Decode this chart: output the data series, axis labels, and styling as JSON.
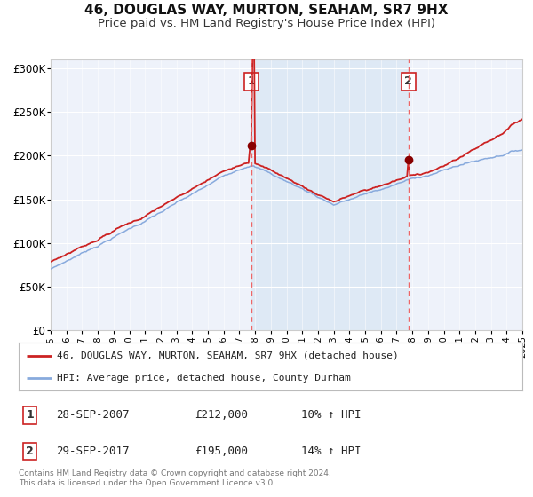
{
  "title": "46, DOUGLAS WAY, MURTON, SEAHAM, SR7 9HX",
  "subtitle": "Price paid vs. HM Land Registry's House Price Index (HPI)",
  "title_fontsize": 11,
  "subtitle_fontsize": 9.5,
  "background_color": "#ffffff",
  "legend_label_red": "46, DOUGLAS WAY, MURTON, SEAHAM, SR7 9HX (detached house)",
  "legend_label_blue": "HPI: Average price, detached house, County Durham",
  "transaction1_date": "28-SEP-2007",
  "transaction1_price": "£212,000",
  "transaction1_hpi": "10% ↑ HPI",
  "transaction1_year": 2007.75,
  "transaction1_value": 212000,
  "transaction2_date": "29-SEP-2017",
  "transaction2_price": "£195,000",
  "transaction2_hpi": "14% ↑ HPI",
  "transaction2_year": 2017.75,
  "transaction2_value": 195000,
  "yticks": [
    0,
    50000,
    100000,
    150000,
    200000,
    250000,
    300000
  ],
  "ytick_labels": [
    "£0",
    "£50K",
    "£100K",
    "£150K",
    "£200K",
    "£250K",
    "£300K"
  ],
  "xmin": 1995,
  "xmax": 2025,
  "ymin": 0,
  "ymax": 310000,
  "footer": "Contains HM Land Registry data © Crown copyright and database right 2024.\nThis data is licensed under the Open Government Licence v3.0.",
  "red_color": "#cc2222",
  "blue_color": "#88aadd",
  "marker_color": "#880000",
  "dashed_color": "#ee6666",
  "shade_color": "#dde8f5",
  "plot_bg_color": "#eef2fa"
}
